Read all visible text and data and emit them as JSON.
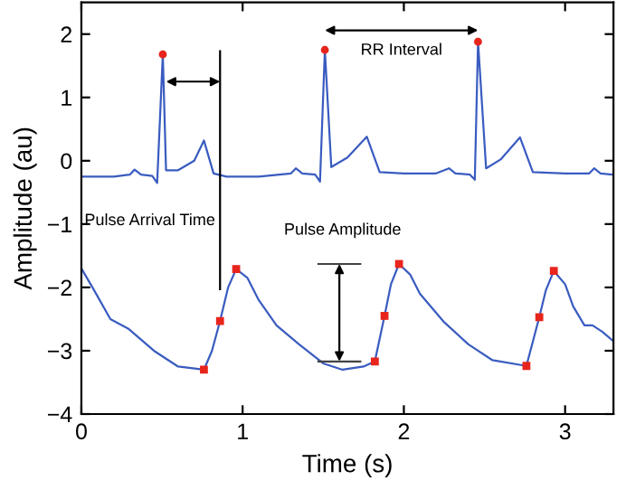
{
  "chart_data": {
    "type": "line",
    "xlabel": "Time (s)",
    "ylabel": "Amplitude (au)",
    "xlim": [
      0,
      3.3
    ],
    "ylim": [
      -4,
      2.5
    ],
    "xticks": [
      0,
      1,
      2,
      3
    ],
    "yticks": [
      {
        "value": -4,
        "label": "−4"
      },
      {
        "value": -3,
        "label": "−3"
      },
      {
        "value": -2,
        "label": "−2"
      },
      {
        "value": -1,
        "label": "−1"
      },
      0,
      1,
      2
    ],
    "grid": false,
    "legend": false,
    "line_style": "solid",
    "marker": "none",
    "annotations": [
      "Pulse Arrival Time",
      "RR Interval",
      "Pulse Amplitude"
    ],
    "series": [
      {
        "color": "#3a5cc0",
        "x": [
          0,
          0.2,
          0.3,
          0.33,
          0.37,
          0.44,
          0.47,
          0.505,
          0.525,
          0.6,
          0.7,
          0.76,
          0.82,
          0.9,
          1.1,
          1.3,
          1.33,
          1.37,
          1.45,
          1.48,
          1.51,
          1.55,
          1.65,
          1.77,
          1.85,
          2.0,
          2.2,
          2.28,
          2.32,
          2.41,
          2.44,
          2.46,
          2.51,
          2.6,
          2.72,
          2.8,
          3.0,
          3.15,
          3.18,
          3.22,
          3.3
        ],
        "values": [
          -0.25,
          -0.25,
          -0.22,
          -0.14,
          -0.22,
          -0.24,
          -0.35,
          1.68,
          -0.15,
          -0.15,
          0.0,
          0.32,
          -0.2,
          -0.25,
          -0.25,
          -0.2,
          -0.12,
          -0.2,
          -0.22,
          -0.33,
          1.75,
          -0.1,
          0.05,
          0.38,
          -0.18,
          -0.2,
          -0.2,
          -0.12,
          -0.2,
          -0.22,
          -0.3,
          1.88,
          -0.12,
          0.02,
          0.37,
          -0.18,
          -0.2,
          -0.2,
          -0.12,
          -0.2,
          -0.22
        ]
      },
      {
        "color": "#3a5cc0",
        "x": [
          0,
          0.08,
          0.18,
          0.29,
          0.45,
          0.6,
          0.76,
          0.81,
          0.86,
          0.91,
          0.96,
          1.03,
          1.1,
          1.21,
          1.35,
          1.5,
          1.62,
          1.75,
          1.82,
          1.88,
          1.92,
          1.97,
          2.04,
          2.1,
          2.25,
          2.4,
          2.55,
          2.76,
          2.84,
          2.88,
          2.93,
          3.0,
          3.05,
          3.12,
          3.17,
          3.23,
          3.3
        ],
        "values": [
          -1.7,
          -2.05,
          -2.5,
          -2.65,
          -3.0,
          -3.25,
          -3.3,
          -3.0,
          -2.53,
          -2.0,
          -1.71,
          -1.85,
          -2.2,
          -2.6,
          -2.9,
          -3.2,
          -3.3,
          -3.25,
          -3.17,
          -2.45,
          -1.95,
          -1.63,
          -1.8,
          -2.1,
          -2.55,
          -2.9,
          -3.15,
          -3.24,
          -2.47,
          -2.05,
          -1.74,
          -1.95,
          -2.3,
          -2.6,
          -2.6,
          -2.7,
          -2.85
        ]
      },
      {
        "type": "scatter",
        "color": "#e8251c",
        "marker": "circle",
        "x": [
          0.505,
          1.51,
          2.46
        ],
        "values": [
          1.68,
          1.75,
          1.88
        ]
      },
      {
        "type": "scatter",
        "color": "#e8251c",
        "marker": "square",
        "x": [
          0.76,
          0.86,
          0.96,
          1.82,
          1.88,
          1.97,
          2.76,
          2.84,
          2.93
        ],
        "values": [
          -3.3,
          -2.53,
          -1.71,
          -3.17,
          -2.45,
          -1.63,
          -3.24,
          -2.47,
          -1.74
        ]
      }
    ]
  }
}
